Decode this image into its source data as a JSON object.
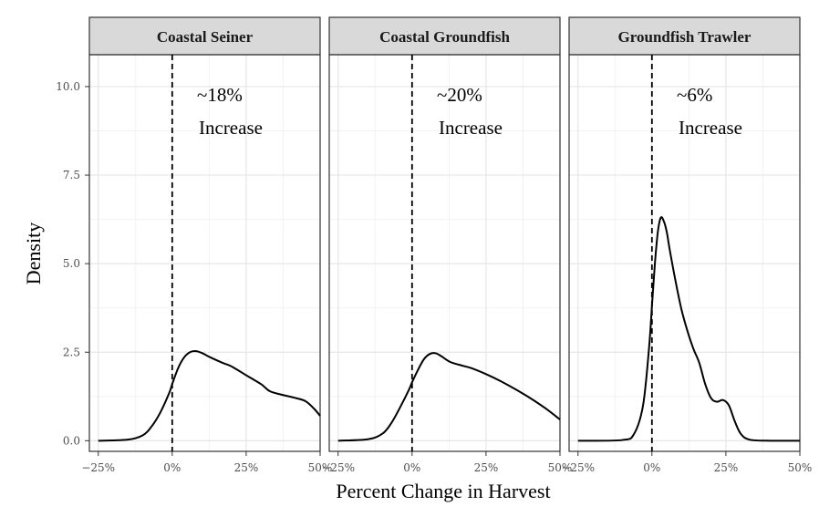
{
  "chart_data": {
    "type": "line",
    "kind": "faceted density plot",
    "xlabel": "Percent Change in Harvest",
    "ylabel": "Density",
    "xlim": [
      -0.28,
      0.5
    ],
    "ylim": [
      -0.3,
      10.9
    ],
    "x_ticks": [
      -0.25,
      0,
      0.25,
      0.5
    ],
    "x_tick_labels": [
      "−25%",
      "0%",
      "25%",
      "50%"
    ],
    "y_ticks": [
      0,
      2.5,
      5,
      7.5,
      10
    ],
    "y_tick_labels": [
      "0.0",
      "2.5",
      "5.0",
      "7.5",
      "10.0"
    ],
    "reference_line": {
      "x": 0,
      "style": "dashed"
    },
    "grid": true,
    "legend": "none",
    "facets": [
      {
        "name": "Coastal Seiner",
        "annotation": [
          "~18%",
          "Increase"
        ],
        "x": [
          -0.25,
          -0.15,
          -0.1,
          -0.07,
          -0.04,
          -0.01,
          0.0,
          0.02,
          0.04,
          0.06,
          0.08,
          0.1,
          0.13,
          0.17,
          0.2,
          0.25,
          0.3,
          0.33,
          0.37,
          0.41,
          0.45,
          0.48,
          0.5
        ],
        "y": [
          0.0,
          0.03,
          0.15,
          0.4,
          0.8,
          1.35,
          1.6,
          2.05,
          2.35,
          2.5,
          2.53,
          2.48,
          2.35,
          2.2,
          2.1,
          1.85,
          1.6,
          1.4,
          1.3,
          1.22,
          1.12,
          0.9,
          0.7
        ]
      },
      {
        "name": "Coastal Groundfish",
        "annotation": [
          "~20%",
          "Increase"
        ],
        "x": [
          -0.25,
          -0.15,
          -0.1,
          -0.07,
          -0.04,
          -0.01,
          0.0,
          0.02,
          0.04,
          0.06,
          0.08,
          0.1,
          0.13,
          0.17,
          0.2,
          0.25,
          0.3,
          0.35,
          0.4,
          0.45,
          0.5
        ],
        "y": [
          0.0,
          0.04,
          0.2,
          0.5,
          0.95,
          1.45,
          1.65,
          2.0,
          2.3,
          2.45,
          2.47,
          2.38,
          2.22,
          2.12,
          2.05,
          1.88,
          1.68,
          1.45,
          1.2,
          0.92,
          0.6
        ]
      },
      {
        "name": "Groundfish Trawler",
        "annotation": [
          "~6%",
          "Increase"
        ],
        "x": [
          -0.25,
          -0.1,
          -0.06,
          -0.03,
          -0.01,
          0.0,
          0.01,
          0.02,
          0.03,
          0.04,
          0.05,
          0.06,
          0.08,
          0.1,
          0.12,
          0.14,
          0.16,
          0.18,
          0.2,
          0.22,
          0.24,
          0.26,
          0.28,
          0.3,
          0.33,
          0.4,
          0.5
        ],
        "y": [
          0.0,
          0.02,
          0.2,
          1.0,
          2.6,
          3.8,
          5.0,
          5.9,
          6.3,
          6.2,
          5.9,
          5.4,
          4.5,
          3.7,
          3.1,
          2.6,
          2.2,
          1.6,
          1.2,
          1.1,
          1.15,
          1.0,
          0.55,
          0.2,
          0.03,
          0.0,
          0.0
        ]
      }
    ]
  }
}
